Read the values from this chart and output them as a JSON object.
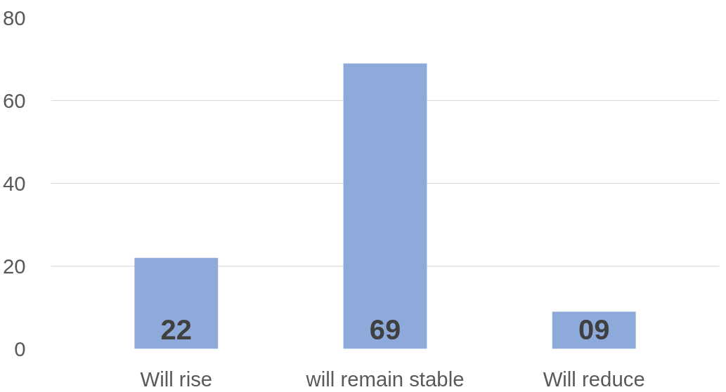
{
  "chart_data": {
    "type": "bar",
    "categories": [
      "Will rise",
      "will remain stable",
      "Will reduce"
    ],
    "values": [
      22,
      69,
      9
    ],
    "value_labels": [
      "22",
      "69",
      "09"
    ],
    "color": "#8eaadb",
    "ylim": [
      0,
      80
    ],
    "yticks": [
      0,
      20,
      40,
      60,
      80
    ],
    "grid": "y"
  }
}
